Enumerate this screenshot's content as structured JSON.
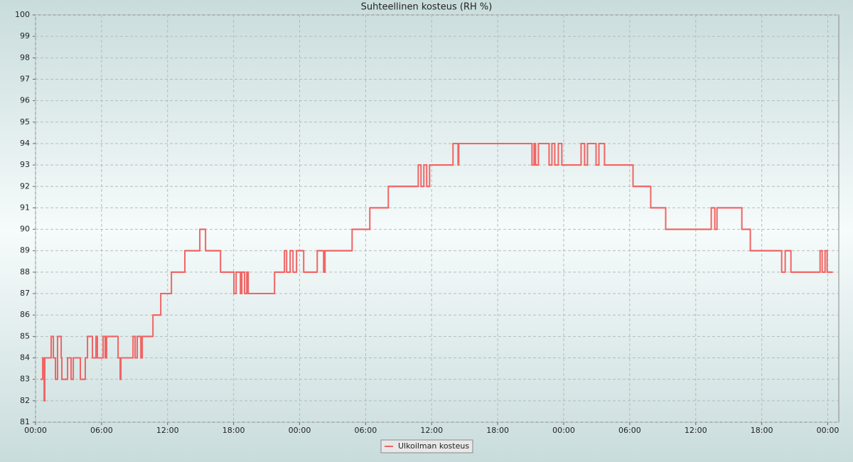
{
  "chart_data": {
    "type": "line",
    "step": true,
    "title": "Suhteellinen kosteus (RH %)",
    "x": [
      0.45,
      0.65,
      0.78,
      0.84,
      1.42,
      1.62,
      1.81,
      2.0,
      2.33,
      2.39,
      2.91,
      3.23,
      3.43,
      4.07,
      4.52,
      4.72,
      5.17,
      5.49,
      5.62,
      6.14,
      6.33,
      6.46,
      7.5,
      7.69,
      7.76,
      8.86,
      9.05,
      9.24,
      9.57,
      9.7,
      10.67,
      11.38,
      12.35,
      13.57,
      14.93,
      15.45,
      16.81,
      18.03,
      18.23,
      18.62,
      18.75,
      19.0,
      19.2,
      19.33,
      21.72,
      22.62,
      22.82,
      23.14,
      23.4,
      23.72,
      24.37,
      25.6,
      26.18,
      26.31,
      28.77,
      30.38,
      32.06,
      34.78,
      35.03,
      35.29,
      35.55,
      35.81,
      37.94,
      38.4,
      38.46,
      45.12,
      45.31,
      45.44,
      45.7,
      46.67,
      46.93,
      47.19,
      47.51,
      47.83,
      49.58,
      49.9,
      50.16,
      50.94,
      51.2,
      51.71,
      54.3,
      55.91,
      57.27,
      61.41,
      61.73,
      61.93,
      64.19,
      64.96,
      67.81,
      68.13,
      68.65,
      71.3,
      71.49,
      71.75,
      71.94,
      72.39
    ],
    "series": [
      {
        "name": "Ulkoilman kosteus",
        "color": "#f06464",
        "values": [
          83,
          84,
          82,
          84,
          85,
          84,
          83,
          85,
          84,
          83,
          84,
          83,
          84,
          83,
          84,
          85,
          84,
          85,
          84,
          85,
          84,
          85,
          84,
          83,
          84,
          85,
          84,
          85,
          84,
          85,
          86,
          87,
          88,
          89,
          90,
          89,
          88,
          87,
          88,
          87,
          88,
          87,
          88,
          87,
          88,
          89,
          88,
          89,
          88,
          89,
          88,
          89,
          88,
          89,
          90,
          91,
          92,
          93,
          92,
          93,
          92,
          93,
          94,
          93,
          94,
          93,
          94,
          93,
          94,
          93,
          94,
          93,
          94,
          93,
          94,
          93,
          94,
          93,
          94,
          93,
          92,
          91,
          90,
          91,
          90,
          91,
          90,
          89,
          88,
          89,
          88,
          89,
          88,
          89,
          88,
          88
        ]
      }
    ],
    "xlim": [
      0,
      73
    ],
    "ylim": [
      81,
      100
    ],
    "xticks": [
      {
        "value": 0,
        "label": "00:00"
      },
      {
        "value": 6,
        "label": "06:00"
      },
      {
        "value": 12,
        "label": "12:00"
      },
      {
        "value": 18,
        "label": "18:00"
      },
      {
        "value": 24,
        "label": "00:00"
      },
      {
        "value": 30,
        "label": "06:00"
      },
      {
        "value": 36,
        "label": "12:00"
      },
      {
        "value": 42,
        "label": "18:00"
      },
      {
        "value": 48,
        "label": "00:00"
      },
      {
        "value": 54,
        "label": "06:00"
      },
      {
        "value": 60,
        "label": "12:00"
      },
      {
        "value": 66,
        "label": "18:00"
      },
      {
        "value": 72,
        "label": "00:00"
      }
    ],
    "yticks": [
      81,
      82,
      83,
      84,
      85,
      86,
      87,
      88,
      89,
      90,
      91,
      92,
      93,
      94,
      95,
      96,
      97,
      98,
      99,
      100
    ],
    "grid": true,
    "legend": "bottom"
  }
}
